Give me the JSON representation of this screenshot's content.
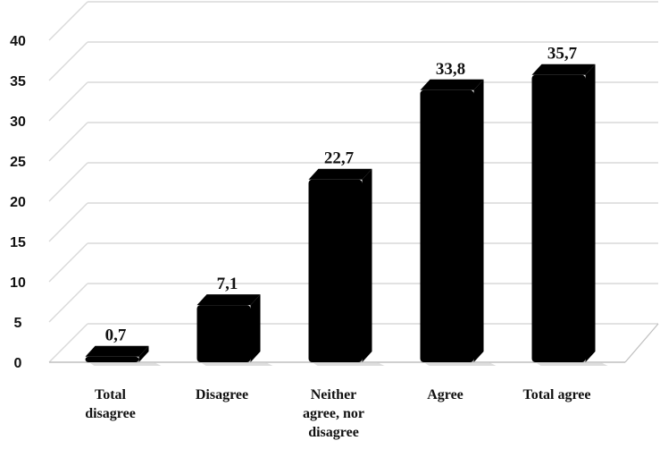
{
  "chart_data": {
    "type": "bar",
    "style": "3d-column",
    "title": "",
    "xlabel": "",
    "ylabel": "",
    "ylim": [
      0,
      40
    ],
    "yticks": [
      0,
      5,
      10,
      15,
      20,
      25,
      30,
      35,
      40
    ],
    "grid": true,
    "legend": "none",
    "categories": [
      [
        "Total",
        "disagree"
      ],
      [
        "Disagree"
      ],
      [
        "Neither",
        "agree, nor",
        "disagree"
      ],
      [
        "Agree"
      ],
      [
        "Total agree"
      ]
    ],
    "values": [
      0.7,
      7.1,
      22.7,
      33.8,
      35.7
    ],
    "data_labels": [
      "0,7",
      "7,1",
      "22,7",
      "33,8",
      "35,7"
    ],
    "colors": {
      "bar": "#000000",
      "grid": "#d9d9d9",
      "axis": "#bfbfbf"
    }
  }
}
